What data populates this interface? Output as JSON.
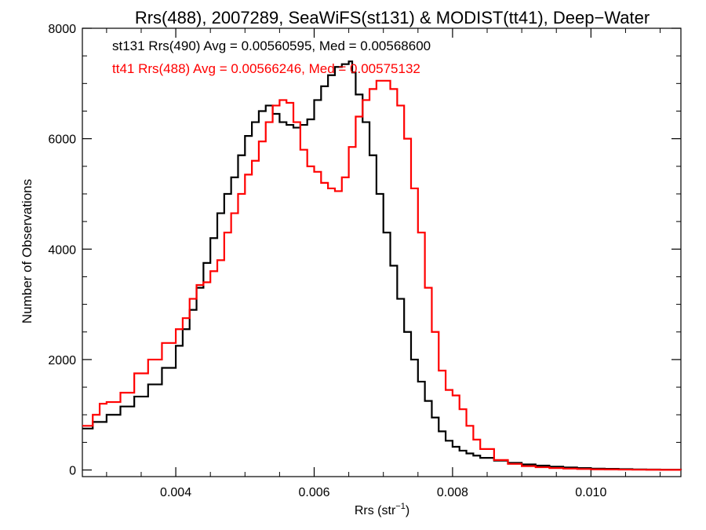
{
  "chart_data": {
    "type": "line",
    "title": "Rrs(488), 2007289, SeaWiFS(st131) & MODIST(tt41), Deep−Water",
    "xlabel": "Rrs (str",
    "xlabel_sup": "−1",
    "xlabel_close": ")",
    "ylabel": "Number of Observations",
    "xlim": [
      0.00265,
      0.0113
    ],
    "ylim": [
      -120,
      8000
    ],
    "x_ticks": [
      0.004,
      0.006,
      0.008,
      0.01
    ],
    "x_tick_labels": [
      "0.004",
      "0.006",
      "0.008",
      "0.010"
    ],
    "y_ticks": [
      0,
      2000,
      4000,
      6000,
      8000
    ],
    "y_tick_labels": [
      "0",
      "2000",
      "4000",
      "6000",
      "8000"
    ],
    "step_style": "histogram-step",
    "grid": false,
    "annotations": [
      {
        "text": "st131 Rrs(490) Avg = 0.00560595, Med = 0.00568600",
        "color": "#000000"
      },
      {
        "text": "tt41 Rrs(488) Avg = 0.00566246, Med = 0.00575132",
        "color": "#ff0000"
      }
    ],
    "series": [
      {
        "color": "#000000",
        "x": [
          0.00265,
          0.0028,
          0.003,
          0.0032,
          0.0034,
          0.0036,
          0.0038,
          0.004,
          0.0041,
          0.0042,
          0.0043,
          0.0044,
          0.0045,
          0.0046,
          0.0047,
          0.0048,
          0.0049,
          0.005,
          0.0051,
          0.0052,
          0.0053,
          0.0054,
          0.0055,
          0.0056,
          0.0057,
          0.0058,
          0.0059,
          0.006,
          0.0061,
          0.0062,
          0.0063,
          0.0064,
          0.0065,
          0.00655,
          0.0066,
          0.0067,
          0.0068,
          0.0069,
          0.007,
          0.0071,
          0.0072,
          0.0073,
          0.0074,
          0.0075,
          0.0076,
          0.0077,
          0.0078,
          0.0079,
          0.008,
          0.0081,
          0.0082,
          0.0083,
          0.0084,
          0.0086,
          0.0088,
          0.009,
          0.0092,
          0.0094,
          0.0096,
          0.0098,
          0.01,
          0.0102,
          0.0104,
          0.0106,
          0.0108,
          0.011,
          0.0113
        ],
        "values": [
          750,
          870,
          1000,
          1150,
          1330,
          1550,
          1850,
          2250,
          2550,
          2900,
          3300,
          3750,
          4200,
          4650,
          5000,
          5300,
          5700,
          6050,
          6300,
          6500,
          6600,
          6450,
          6300,
          6250,
          6200,
          6250,
          6350,
          6700,
          6950,
          7150,
          7300,
          7350,
          7400,
          7200,
          6800,
          6300,
          5700,
          5000,
          4300,
          3700,
          3100,
          2500,
          2000,
          1600,
          1250,
          950,
          700,
          530,
          420,
          350,
          300,
          260,
          220,
          170,
          130,
          100,
          80,
          60,
          45,
          35,
          25,
          20,
          15,
          10,
          8,
          5,
          3
        ]
      },
      {
        "color": "#ff0000",
        "x": [
          0.00265,
          0.0028,
          0.0029,
          0.003,
          0.0032,
          0.0034,
          0.0036,
          0.0038,
          0.004,
          0.0041,
          0.0042,
          0.0043,
          0.0044,
          0.0045,
          0.0046,
          0.0047,
          0.0048,
          0.0049,
          0.005,
          0.0051,
          0.0052,
          0.0053,
          0.0054,
          0.0055,
          0.0056,
          0.0057,
          0.0058,
          0.0059,
          0.006,
          0.0061,
          0.0062,
          0.0063,
          0.0064,
          0.0065,
          0.0066,
          0.0067,
          0.0068,
          0.0069,
          0.007,
          0.0071,
          0.0072,
          0.0073,
          0.0074,
          0.0075,
          0.0076,
          0.0077,
          0.0078,
          0.0079,
          0.008,
          0.0081,
          0.0082,
          0.0083,
          0.0084,
          0.0086,
          0.0088,
          0.009,
          0.0092,
          0.0094,
          0.0096,
          0.0098,
          0.01,
          0.0102,
          0.0104,
          0.0106,
          0.0108,
          0.011,
          0.0113
        ],
        "values": [
          800,
          1000,
          1200,
          1230,
          1400,
          1750,
          2000,
          2300,
          2550,
          2750,
          3100,
          3350,
          3400,
          3600,
          3800,
          4300,
          4650,
          5000,
          5350,
          5600,
          5950,
          6300,
          6600,
          6700,
          6650,
          6300,
          5800,
          5500,
          5400,
          5200,
          5100,
          5050,
          5300,
          5850,
          6400,
          6700,
          6900,
          7050,
          7050,
          6900,
          6600,
          6000,
          5100,
          4300,
          3300,
          2500,
          1800,
          1450,
          1350,
          1100,
          800,
          550,
          380,
          180,
          110,
          70,
          50,
          35,
          25,
          18,
          12,
          10,
          7,
          5,
          4,
          3,
          2
        ]
      }
    ]
  }
}
